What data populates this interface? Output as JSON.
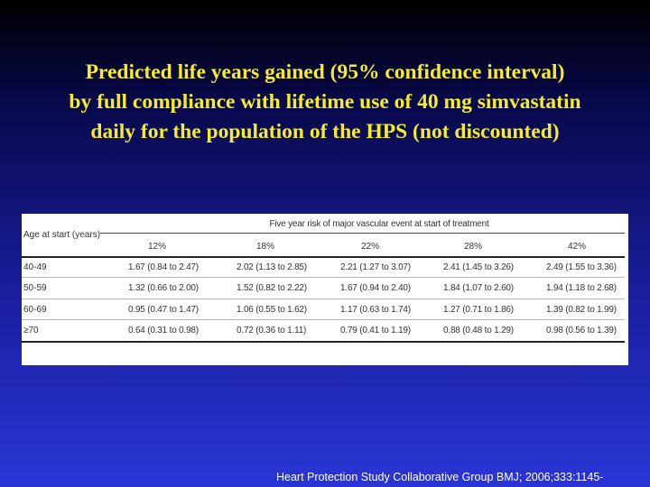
{
  "title": {
    "line1": "Predicted life years gained (95% confidence interval)",
    "line2": "by full compliance with lifetime use of 40 mg simvastatin",
    "line3": "daily for the population of the HPS (not discounted)"
  },
  "table": {
    "caption": "Five year risk of major vascular event at start of treatment",
    "row_header": "Age at start (years)",
    "columns": [
      "12%",
      "18%",
      "22%",
      "28%",
      "42%"
    ],
    "rows": [
      {
        "age": "40-49",
        "values": [
          "1.67 (0.84 to 2.47)",
          "2.02 (1.13 to 2.85)",
          "2.21 (1.27 to 3.07)",
          "2.41 (1.45 to 3.26)",
          "2.49 (1.55 to 3.36)"
        ]
      },
      {
        "age": "50-59",
        "values": [
          "1.32 (0.66 to 2.00)",
          "1.52 (0.82 to 2.22)",
          "1.67 (0.94 to 2.40)",
          "1.84 (1.07 to 2.60)",
          "1.94 (1.18 to 2.68)"
        ]
      },
      {
        "age": "60-69",
        "values": [
          "0.95 (0.47 to 1.47)",
          "1.06 (0.55 to 1.62)",
          "1.17 (0.63 to 1.74)",
          "1.27 (0.71 to 1.86)",
          "1.39 (0.82 to 1.99)"
        ]
      },
      {
        "age": "≥70",
        "values": [
          "0.64 (0.31 to 0.98)",
          "0.72 (0.36 to 1.11)",
          "0.79 (0.41 to 1.19)",
          "0.88 (0.48 to 1.29)",
          "0.98 (0.56 to 1.39)"
        ]
      }
    ]
  },
  "footer": "Heart Protection Study Collaborative Group BMJ; 2006;333:1145-"
}
